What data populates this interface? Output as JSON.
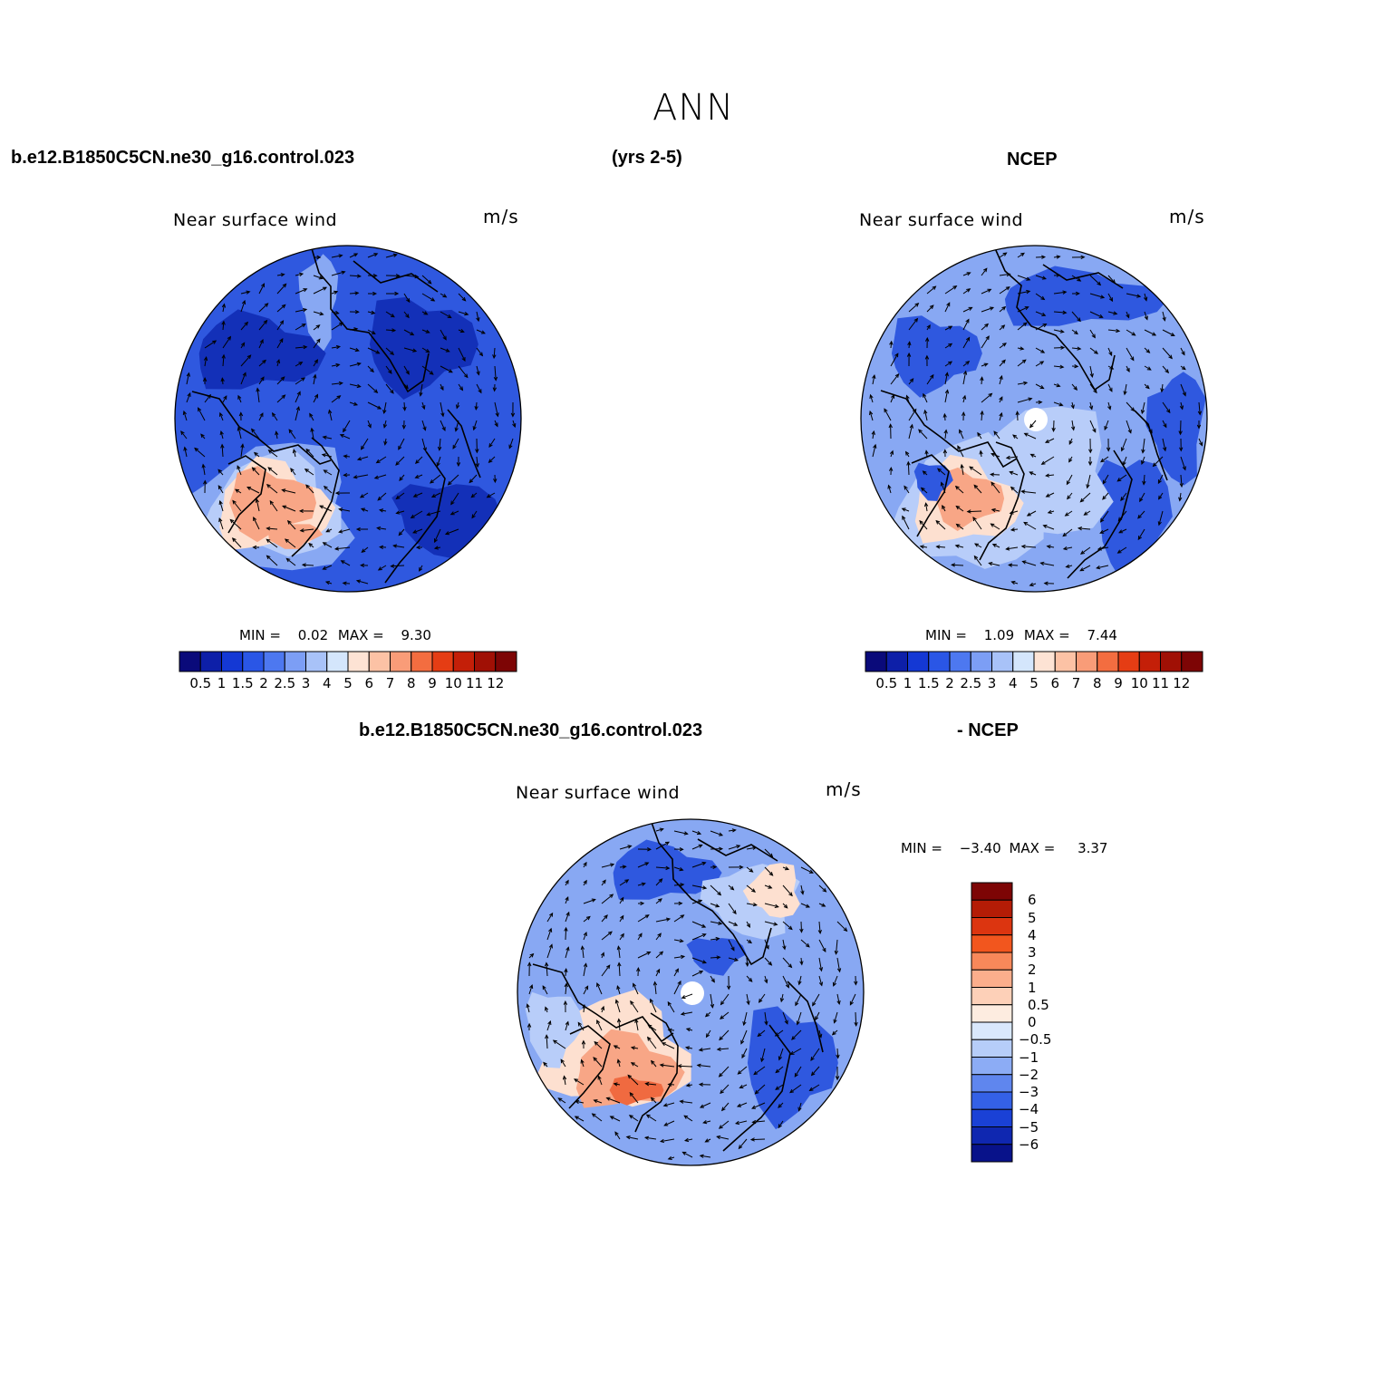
{
  "page": {
    "title": "ANN",
    "case_name": "b.e12.B1850C5CN.ne30_g16.control.023",
    "years": "(yrs 2-5)",
    "obs_name": "NCEP",
    "diff_case_name": "b.e12.B1850C5CN.ne30_g16.control.023",
    "diff_obs_name": "- NCEP"
  },
  "panels": [
    {
      "id": "model",
      "variable_label": "Near surface wind",
      "units": "m/s",
      "min_label": "MIN =",
      "min_value": "0.02",
      "max_label": "MAX =",
      "max_value": "9.30"
    },
    {
      "id": "obs",
      "variable_label": "Near surface wind",
      "units": "m/s",
      "min_label": "MIN =",
      "min_value": "1.09",
      "max_label": "MAX =",
      "max_value": "7.44"
    },
    {
      "id": "diff",
      "variable_label": "Near surface wind",
      "units": "m/s",
      "min_label": "MIN =",
      "min_value": "−3.40",
      "max_label": "MAX =",
      "max_value": "3.37"
    }
  ],
  "colorbars": {
    "abs": {
      "ticks": [
        "0.5",
        "1",
        "1.5",
        "2",
        "2.5",
        "3",
        "4",
        "5",
        "6",
        "7",
        "8",
        "9",
        "10",
        "11",
        "12"
      ],
      "colors": [
        "#0a0a7a",
        "#0d1fa8",
        "#1438d4",
        "#2a56e6",
        "#4d78f0",
        "#7c9ef5",
        "#a8c2f8",
        "#d4e6fc",
        "#fde3d4",
        "#fcc2a5",
        "#f99c78",
        "#f36d40",
        "#e53d14",
        "#c41f08",
        "#a01005",
        "#7d0505"
      ]
    },
    "diff": {
      "ticks": [
        "6",
        "5",
        "4",
        "3",
        "2",
        "1",
        "0.5",
        "0",
        "−0.5",
        "−1",
        "−2",
        "−3",
        "−4",
        "−5",
        "−6"
      ],
      "colors": [
        "#7d0505",
        "#b41c06",
        "#dc3510",
        "#f2561e",
        "#f8885a",
        "#fbae8c",
        "#fdd0b8",
        "#fdece0",
        "#d9e8fc",
        "#b6cdf9",
        "#8cacf5",
        "#5f86ee",
        "#3461e6",
        "#1a41d6",
        "#0f27b0",
        "#08128a"
      ]
    }
  },
  "map": {
    "fill_colors": {
      "deep_blue": "#1330b8",
      "mid_blue": "#2f58df",
      "light_blue": "#88a8f3",
      "pale_blue": "#b8cdf9",
      "pale_peach": "#fde0d0",
      "salmon": "#f8a686",
      "red": "#f06a40",
      "missing": "#ffffff"
    },
    "coastline_color": "#000000",
    "vector_color": "#000000"
  }
}
